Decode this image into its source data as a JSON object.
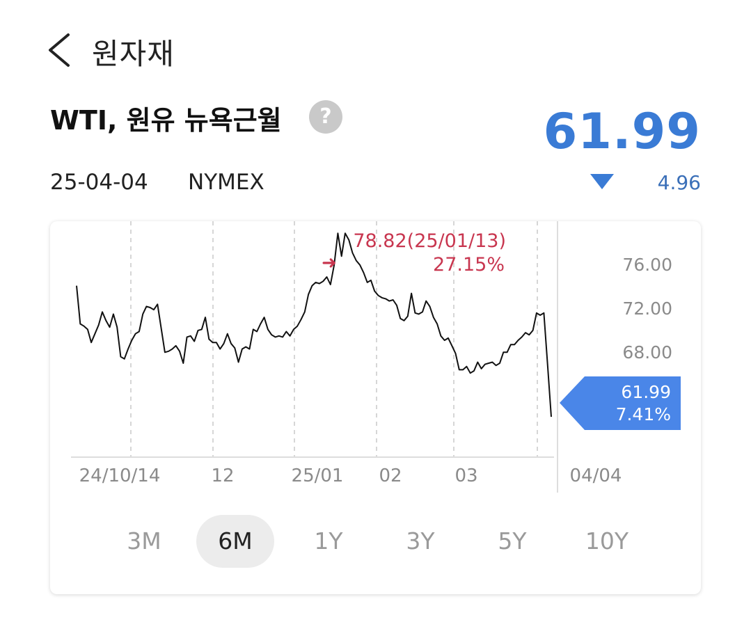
{
  "header": {
    "title": "원자재"
  },
  "instrument": {
    "name": "WTI, 원유 뉴욕근월",
    "help": "?",
    "price": "61.99",
    "date": "25-04-04",
    "exchange": "NYMEX",
    "change": "4.96",
    "change_direction": "down",
    "change_color": "#3a6fb8",
    "price_color": "#3a7bd5"
  },
  "chart_data": {
    "type": "line",
    "x_tick_labels": [
      "24/10/14",
      "12",
      "25/01",
      "02",
      "03",
      "04/04"
    ],
    "y_tick_labels": [
      "76.00",
      "72.00",
      "68.00"
    ],
    "y_ticks": [
      76,
      72,
      68
    ],
    "ylim": [
      58.3,
      79.9
    ],
    "grid": "vertical dashed",
    "max_annotation": {
      "value": "78.82(25/01/13)",
      "percent": "27.15%",
      "color": "#c8364f"
    },
    "current_label": {
      "value": "61.99",
      "percent": "7.41%",
      "color": "#4a86e8"
    },
    "series": [
      {
        "values": [
          74.0,
          70.5,
          70.3,
          70.0,
          68.8,
          69.6,
          70.4,
          71.6,
          70.8,
          70.2,
          71.4,
          70.2,
          67.5,
          67.3,
          68.2,
          69.0,
          69.6,
          69.8,
          71.4,
          72.1,
          72.0,
          71.8,
          72.3,
          70.1,
          67.9,
          68.0,
          68.2,
          68.5,
          68.0,
          66.9,
          69.3,
          69.4,
          68.9,
          69.9,
          70.0,
          71.1,
          69.1,
          68.8,
          68.8,
          68.2,
          68.7,
          69.6,
          68.7,
          68.3,
          67.0,
          68.2,
          68.4,
          68.2,
          70.0,
          69.8,
          70.5,
          71.1,
          70.0,
          69.5,
          69.3,
          69.4,
          69.3,
          69.8,
          69.4,
          70.0,
          70.3,
          70.9,
          71.6,
          73.2,
          74.0,
          74.3,
          74.2,
          74.4,
          74.8,
          74.1,
          75.9,
          78.8,
          76.7,
          78.8,
          78.2,
          77.0,
          76.3,
          75.9,
          75.2,
          74.3,
          74.5,
          73.5,
          73.1,
          72.9,
          72.8,
          72.6,
          72.7,
          72.2,
          71.0,
          70.8,
          71.2,
          73.3,
          71.5,
          71.4,
          71.6,
          72.6,
          72.1,
          71.1,
          70.5,
          69.4,
          69.0,
          69.2,
          68.5,
          67.8,
          66.3,
          66.3,
          66.6,
          66.0,
          66.2,
          67.0,
          66.4,
          66.8,
          66.9,
          67.0,
          66.7,
          66.9,
          67.9,
          67.9,
          68.6,
          68.6,
          69.0,
          69.3,
          69.7,
          69.5,
          69.9,
          71.5,
          71.3,
          71.5,
          66.8,
          61.99
        ]
      }
    ]
  },
  "periods": [
    "3M",
    "6M",
    "1Y",
    "3Y",
    "5Y",
    "10Y"
  ],
  "active_period": "6M"
}
